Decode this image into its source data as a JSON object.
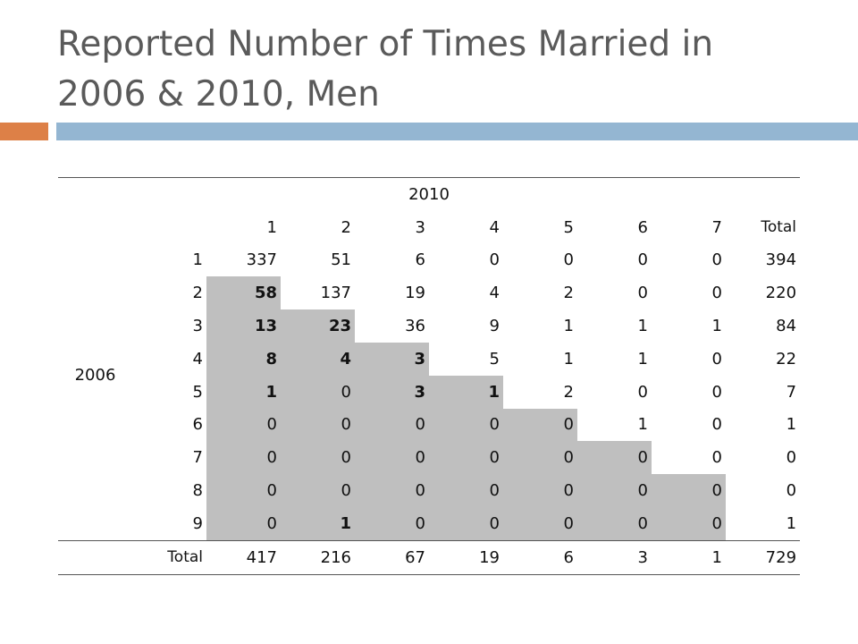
{
  "slide": {
    "title_line1": "Reported Number of Times Married in",
    "title_line2": "2006 & 2010, Men"
  },
  "table": {
    "col_group_label": "2010",
    "row_group_label": "2006",
    "col_headers": [
      "1",
      "2",
      "3",
      "4",
      "5",
      "6",
      "7",
      "Total"
    ],
    "rows": [
      {
        "label": "1",
        "values": [
          "337",
          "51",
          "6",
          "0",
          "0",
          "0",
          "0",
          "394"
        ],
        "shaded": [
          false,
          false,
          false,
          false,
          false,
          false,
          false,
          false
        ],
        "bold": [
          false,
          false,
          false,
          false,
          false,
          false,
          false,
          false
        ]
      },
      {
        "label": "2",
        "values": [
          "58",
          "137",
          "19",
          "4",
          "2",
          "0",
          "0",
          "220"
        ],
        "shaded": [
          true,
          false,
          false,
          false,
          false,
          false,
          false,
          false
        ],
        "bold": [
          true,
          false,
          false,
          false,
          false,
          false,
          false,
          false
        ]
      },
      {
        "label": "3",
        "values": [
          "13",
          "23",
          "36",
          "9",
          "1",
          "1",
          "1",
          "84"
        ],
        "shaded": [
          true,
          true,
          false,
          false,
          false,
          false,
          false,
          false
        ],
        "bold": [
          true,
          true,
          false,
          false,
          false,
          false,
          false,
          false
        ]
      },
      {
        "label": "4",
        "values": [
          "8",
          "4",
          "3",
          "5",
          "1",
          "1",
          "0",
          "22"
        ],
        "shaded": [
          true,
          true,
          true,
          false,
          false,
          false,
          false,
          false
        ],
        "bold": [
          true,
          true,
          true,
          false,
          false,
          false,
          false,
          false
        ]
      },
      {
        "label": "5",
        "values": [
          "1",
          "0",
          "3",
          "1",
          "2",
          "0",
          "0",
          "7"
        ],
        "shaded": [
          true,
          true,
          true,
          true,
          false,
          false,
          false,
          false
        ],
        "bold": [
          true,
          false,
          true,
          true,
          false,
          false,
          false,
          false
        ]
      },
      {
        "label": "6",
        "values": [
          "0",
          "0",
          "0",
          "0",
          "0",
          "1",
          "0",
          "1"
        ],
        "shaded": [
          true,
          true,
          true,
          true,
          true,
          false,
          false,
          false
        ],
        "bold": [
          false,
          false,
          false,
          false,
          false,
          false,
          false,
          false
        ]
      },
      {
        "label": "7",
        "values": [
          "0",
          "0",
          "0",
          "0",
          "0",
          "0",
          "0",
          "0"
        ],
        "shaded": [
          true,
          true,
          true,
          true,
          true,
          true,
          false,
          false
        ],
        "bold": [
          false,
          false,
          false,
          false,
          false,
          false,
          false,
          false
        ]
      },
      {
        "label": "8",
        "values": [
          "0",
          "0",
          "0",
          "0",
          "0",
          "0",
          "0",
          "0"
        ],
        "shaded": [
          true,
          true,
          true,
          true,
          true,
          true,
          true,
          false
        ],
        "bold": [
          false,
          false,
          false,
          false,
          false,
          false,
          false,
          false
        ]
      },
      {
        "label": "9",
        "values": [
          "0",
          "1",
          "0",
          "0",
          "0",
          "0",
          "0",
          "1"
        ],
        "shaded": [
          true,
          true,
          true,
          true,
          true,
          true,
          true,
          false
        ],
        "bold": [
          false,
          true,
          false,
          false,
          false,
          false,
          false,
          false
        ]
      }
    ],
    "total_row": {
      "label": "Total",
      "values": [
        "417",
        "216",
        "67",
        "19",
        "6",
        "3",
        "1",
        "729"
      ]
    }
  }
}
